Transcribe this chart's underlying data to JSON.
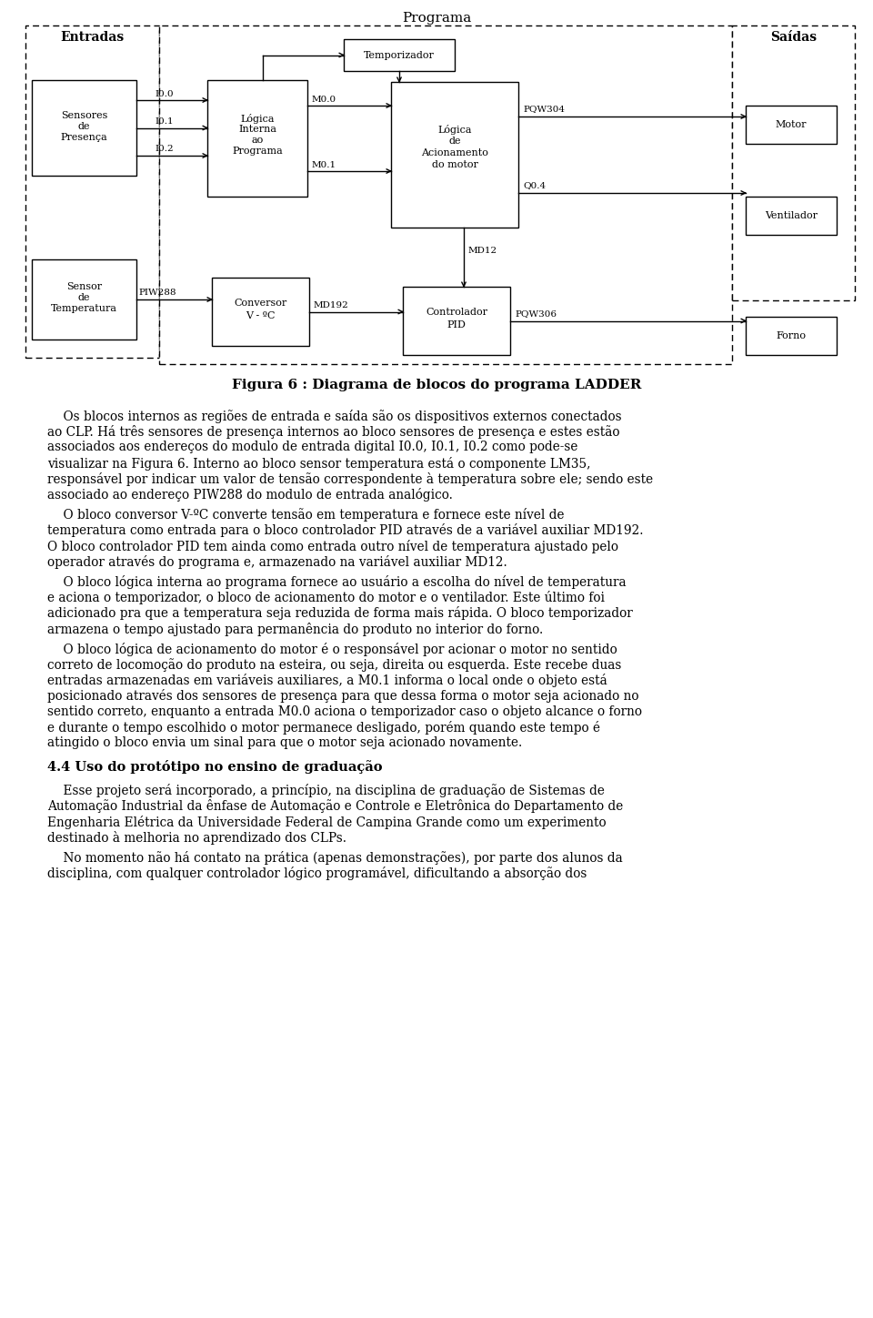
{
  "title": "Programa",
  "fig_caption": "Figura 6 : Diagrama de blocos do programa LADDER",
  "bg_color": "#ffffff",
  "text_color": "#000000",
  "body_text": [
    {
      "indent": true,
      "lines": [
        "    Os blocos internos as regiões de entrada e saída são os dispositivos externos conectados",
        "ao CLP. Há três sensores de presença internos ao bloco sensores de presença e estes estão",
        "associados aos endereços do modulo de entrada digital I0.0, I0.1, I0.2 como pode-se",
        "visualizar na Figura 6. Interno ao bloco sensor temperatura está o componente LM35,",
        "responsável por indicar um valor de tensão correspondente à temperatura sobre ele; sendo este",
        "associado ao endereço PIW288 do modulo de entrada analógico."
      ]
    },
    {
      "indent": true,
      "lines": [
        "    O bloco conversor V-ºC converte tensão em temperatura e fornece este nível de",
        "temperatura como entrada para o bloco controlador PID através de a variável auxiliar MD192.",
        "O bloco controlador PID tem ainda como entrada outro nível de temperatura ajustado pelo",
        "operador através do programa e, armazenado na variável auxiliar MD12."
      ]
    },
    {
      "indent": true,
      "lines": [
        "    O bloco lógica interna ao programa fornece ao usuário a escolha do nível de temperatura",
        "e aciona o temporizador, o bloco de acionamento do motor e o ventilador. Este último foi",
        "adicionado pra que a temperatura seja reduzida de forma mais rápida. O bloco temporizador",
        "armazena o tempo ajustado para permanência do produto no interior do forno."
      ]
    },
    {
      "indent": true,
      "lines": [
        "    O bloco lógica de acionamento do motor é o responsável por acionar o motor no sentido",
        "correto de locomoção do produto na esteira, ou seja, direita ou esquerda. Este recebe duas",
        "entradas armazenadas em variáveis auxiliares, a M0.1 informa o local onde o objeto está",
        "posicionado através dos sensores de presença para que dessa forma o motor seja acionado no",
        "sentido correto, enquanto a entrada M0.0 aciona o temporizador caso o objeto alcance o forno",
        "e durante o tempo escolhido o motor permanece desligado, porém quando este tempo é",
        "atingido o bloco envia um sinal para que o motor seja acionado novamente."
      ]
    }
  ],
  "section_title": "4.4 Uso do protótipo no ensino de graduação",
  "body_text2": [
    {
      "lines": [
        "    Esse projeto será incorporado, a princípio, na disciplina de graduação de Sistemas de",
        "Automação Industrial da ênfase de Automação e Controle e Eletrônica do Departamento de",
        "Engenharia Elétrica da Universidade Federal de Campina Grande como um experimento",
        "destinado à melhoria no aprendizado dos CLPs."
      ]
    },
    {
      "lines": [
        "    No momento não há contato na prática (apenas demonstrações), por parte dos alunos da",
        "disciplina, com qualquer controlador lógico programável, dificultando a absorção dos"
      ]
    }
  ]
}
